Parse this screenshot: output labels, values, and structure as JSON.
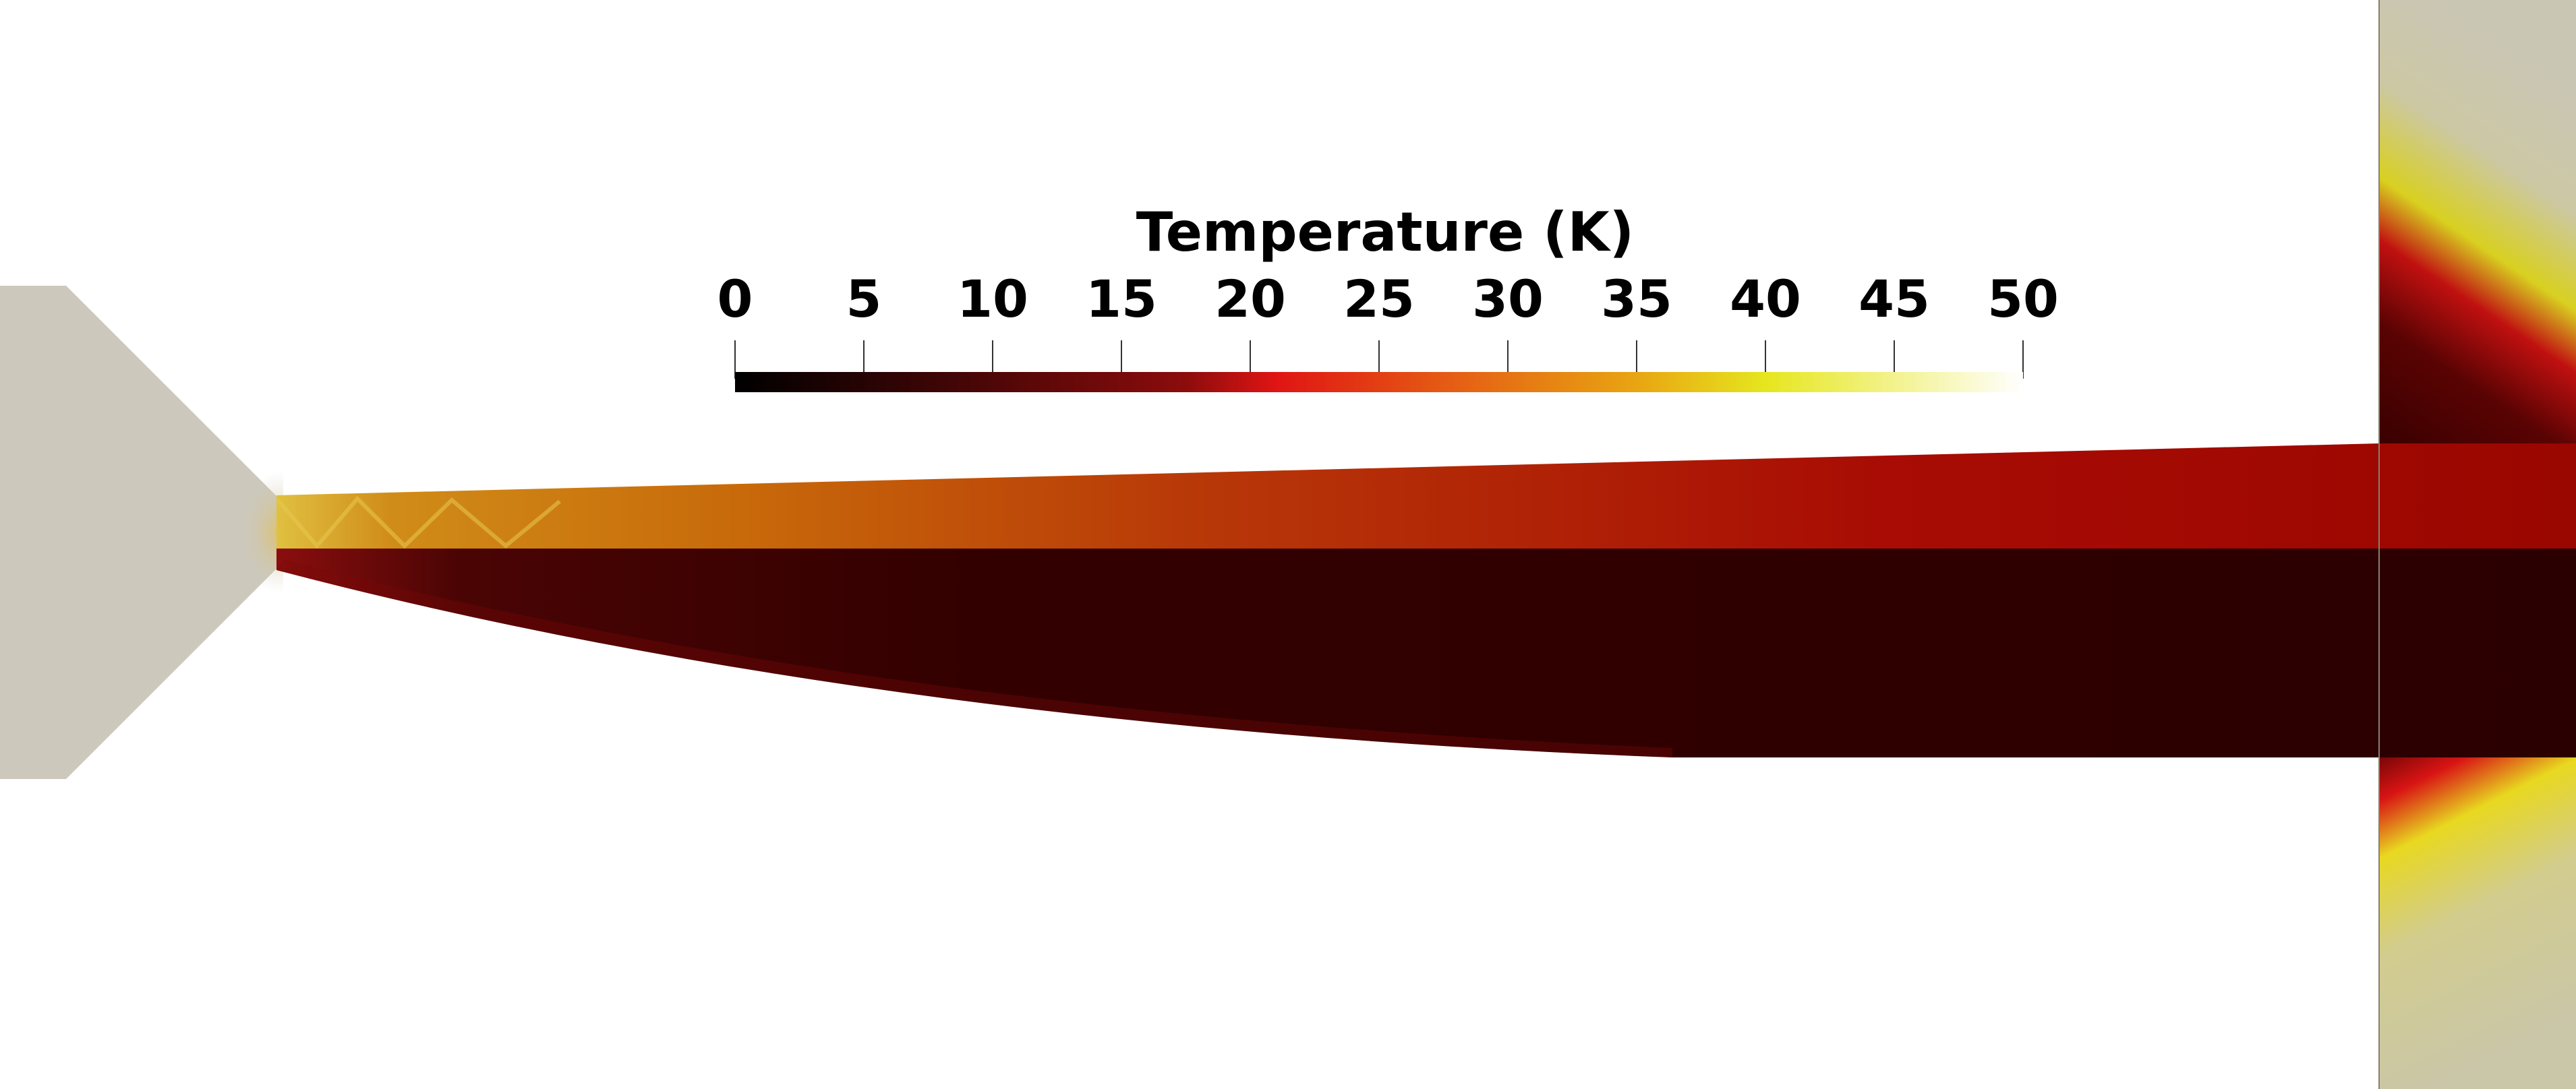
{
  "colorbar": {
    "title": "Temperature (K)",
    "min": 0,
    "max": 50,
    "ticks": [
      "0",
      "5",
      "10",
      "15",
      "20",
      "25",
      "30",
      "35",
      "40",
      "45",
      "50"
    ],
    "colormap": "black-body radiation",
    "colormap_stops": [
      "#000000",
      "#4a0606",
      "#8c0c0c",
      "#e21a1a",
      "#e8a012",
      "#e6e61e",
      "#ffffff"
    ]
  },
  "colors": {
    "background": "#ffffff",
    "solid_wall": "#ccc8bc",
    "upper_jet_near": "#c8780a",
    "upper_jet_far": "#a00a00",
    "lower_jet": "#2b0000"
  }
}
